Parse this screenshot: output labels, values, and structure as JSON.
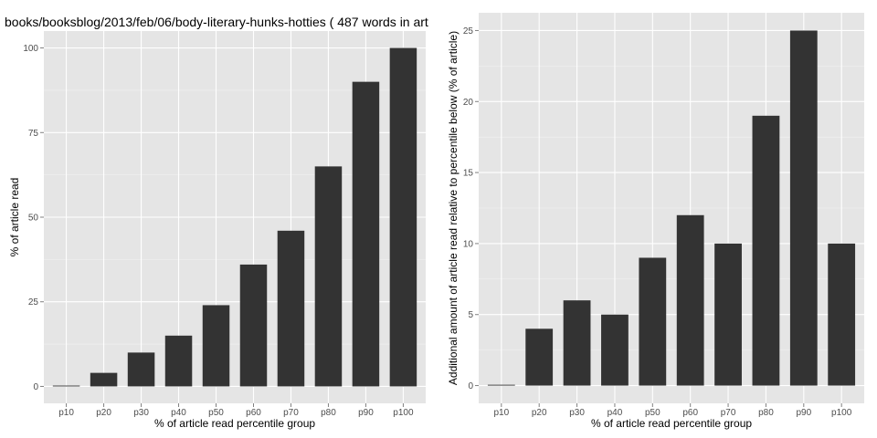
{
  "colors": {
    "panel_bg": "#e5e5e5",
    "grid_major": "#ffffff",
    "grid_minor": "#f2f2f2",
    "bar_fill": "#333333",
    "tick_text": "#4d4d4d",
    "tick_mark": "#7f7f7f"
  },
  "chart_data": [
    {
      "type": "bar",
      "title": "books/booksblog/2013/feb/06/body-literary-hunks-hotties ( 487 words in art",
      "xlabel": "% of article read percentile group",
      "ylabel": "% of article read",
      "categories": [
        "p10",
        "p20",
        "p30",
        "p40",
        "p50",
        "p60",
        "p70",
        "p80",
        "p90",
        "p100"
      ],
      "values": [
        0,
        4,
        10,
        15,
        24,
        36,
        46,
        65,
        90,
        100
      ],
      "ylim": [
        -5,
        105
      ],
      "yticks": [
        0,
        25,
        50,
        75,
        100
      ],
      "grid": true
    },
    {
      "type": "bar",
      "title": "",
      "xlabel": "% of article read percentile group",
      "ylabel": "Additional amount of article read relative to percentile below (% of article)",
      "categories": [
        "p10",
        "p20",
        "p30",
        "p40",
        "p50",
        "p60",
        "p70",
        "p80",
        "p90",
        "p100"
      ],
      "values": [
        0,
        4,
        6,
        5,
        9,
        12,
        10,
        19,
        25,
        10
      ],
      "ylim": [
        -1.25,
        26.25
      ],
      "yticks": [
        0,
        5,
        10,
        15,
        20,
        25
      ],
      "grid": true
    }
  ]
}
